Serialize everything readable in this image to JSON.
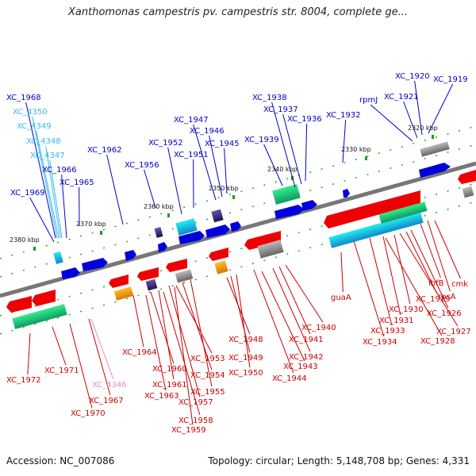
{
  "header": {
    "title": "Xanthomonas campestris pv. campestris str. 8004, complete ge..."
  },
  "footer": {
    "accession": "Accession: NC_007086",
    "summary": "Topology: circular; Length: 5,148,708 bp; Genes: 4,331"
  },
  "ticks": [
    {
      "label": "2380 kbp"
    },
    {
      "label": "2370 kbp"
    },
    {
      "label": "2360 kbp"
    },
    {
      "label": "2350 kbp"
    },
    {
      "label": "2340 kbp"
    },
    {
      "label": "2330 kbp"
    },
    {
      "label": "2320 kbp"
    }
  ],
  "top_genes": [
    {
      "label": "XC_1968",
      "color": "#0000cc"
    },
    {
      "label": "XC_4350",
      "color": "#33bbee"
    },
    {
      "label": "XC_4349",
      "color": "#33bbee"
    },
    {
      "label": "XC_4348",
      "color": "#33bbee"
    },
    {
      "label": "XC_4347",
      "color": "#33bbee"
    },
    {
      "label": "XC_1966",
      "color": "#0000cc"
    },
    {
      "label": "XC_1965",
      "color": "#0000cc"
    },
    {
      "label": "XC_1969",
      "color": "#0000cc"
    },
    {
      "label": "XC_1962",
      "color": "#0000cc"
    },
    {
      "label": "XC_1956",
      "color": "#0000cc"
    },
    {
      "label": "XC_1952",
      "color": "#0000cc"
    },
    {
      "label": "XC_1951",
      "color": "#0000cc"
    },
    {
      "label": "XC_1947",
      "color": "#0000cc"
    },
    {
      "label": "XC_1946",
      "color": "#0000cc"
    },
    {
      "label": "XC_1945",
      "color": "#0000cc"
    },
    {
      "label": "XC_1938",
      "color": "#0000cc"
    },
    {
      "label": "XC_1937",
      "color": "#0000cc"
    },
    {
      "label": "XC_1936",
      "color": "#0000cc"
    },
    {
      "label": "XC_1939",
      "color": "#0000cc"
    },
    {
      "label": "XC_1932",
      "color": "#0000cc"
    },
    {
      "label": "rpmJ",
      "color": "#0000cc"
    },
    {
      "label": "XC_1921",
      "color": "#0000cc"
    },
    {
      "label": "XC_1920",
      "color": "#0000cc"
    },
    {
      "label": "XC_1919",
      "color": "#0000cc"
    }
  ],
  "bottom_genes": [
    {
      "label": "XC_1972",
      "color": "#cc0000"
    },
    {
      "label": "XC_1971",
      "color": "#cc0000"
    },
    {
      "label": "XC_4346",
      "color": "#ee88bb"
    },
    {
      "label": "XC_1967",
      "color": "#cc0000"
    },
    {
      "label": "XC_1970",
      "color": "#cc0000"
    },
    {
      "label": "XC_1964",
      "color": "#cc0000"
    },
    {
      "label": "XC_1960",
      "color": "#cc0000"
    },
    {
      "label": "XC_1961",
      "color": "#cc0000"
    },
    {
      "label": "XC_1963",
      "color": "#cc0000"
    },
    {
      "label": "XC_1953",
      "color": "#cc0000"
    },
    {
      "label": "XC_1954",
      "color": "#cc0000"
    },
    {
      "label": "XC_1955",
      "color": "#cc0000"
    },
    {
      "label": "XC_1957",
      "color": "#cc0000"
    },
    {
      "label": "XC_1958",
      "color": "#cc0000"
    },
    {
      "label": "XC_1959",
      "color": "#cc0000"
    },
    {
      "label": "XC_1948",
      "color": "#cc0000"
    },
    {
      "label": "XC_1949",
      "color": "#cc0000"
    },
    {
      "label": "XC_1950",
      "color": "#cc0000"
    },
    {
      "label": "XC_1940",
      "color": "#cc0000"
    },
    {
      "label": "XC_1941",
      "color": "#cc0000"
    },
    {
      "label": "XC_1942",
      "color": "#cc0000"
    },
    {
      "label": "XC_1943",
      "color": "#cc0000"
    },
    {
      "label": "XC_1944",
      "color": "#cc0000"
    },
    {
      "label": "guaA",
      "color": "#cc0000"
    },
    {
      "label": "XC_1929",
      "color": "#cc0000"
    },
    {
      "label": "XC_1930",
      "color": "#cc0000"
    },
    {
      "label": "XC_1931",
      "color": "#cc0000"
    },
    {
      "label": "XC_1933",
      "color": "#cc0000"
    },
    {
      "label": "XC_1934",
      "color": "#cc0000"
    },
    {
      "label": "ihfB",
      "color": "#cc0000"
    },
    {
      "label": "rpsA",
      "color": "#cc0000"
    },
    {
      "label": "cmk",
      "color": "#cc0000"
    },
    {
      "label": "XC_1926",
      "color": "#cc0000"
    },
    {
      "label": "XC_1927",
      "color": "#cc0000"
    },
    {
      "label": "XC_1928",
      "color": "#cc0000"
    }
  ],
  "colors": {
    "backbone": "#777777",
    "forward_strand": "#0000dd",
    "reverse_strand": "#ee0000",
    "tick": "#229922",
    "track_cyan": "#22ccee",
    "track_green": "#33cc77",
    "track_purple": "#443388",
    "track_orange": "#ff9900"
  }
}
